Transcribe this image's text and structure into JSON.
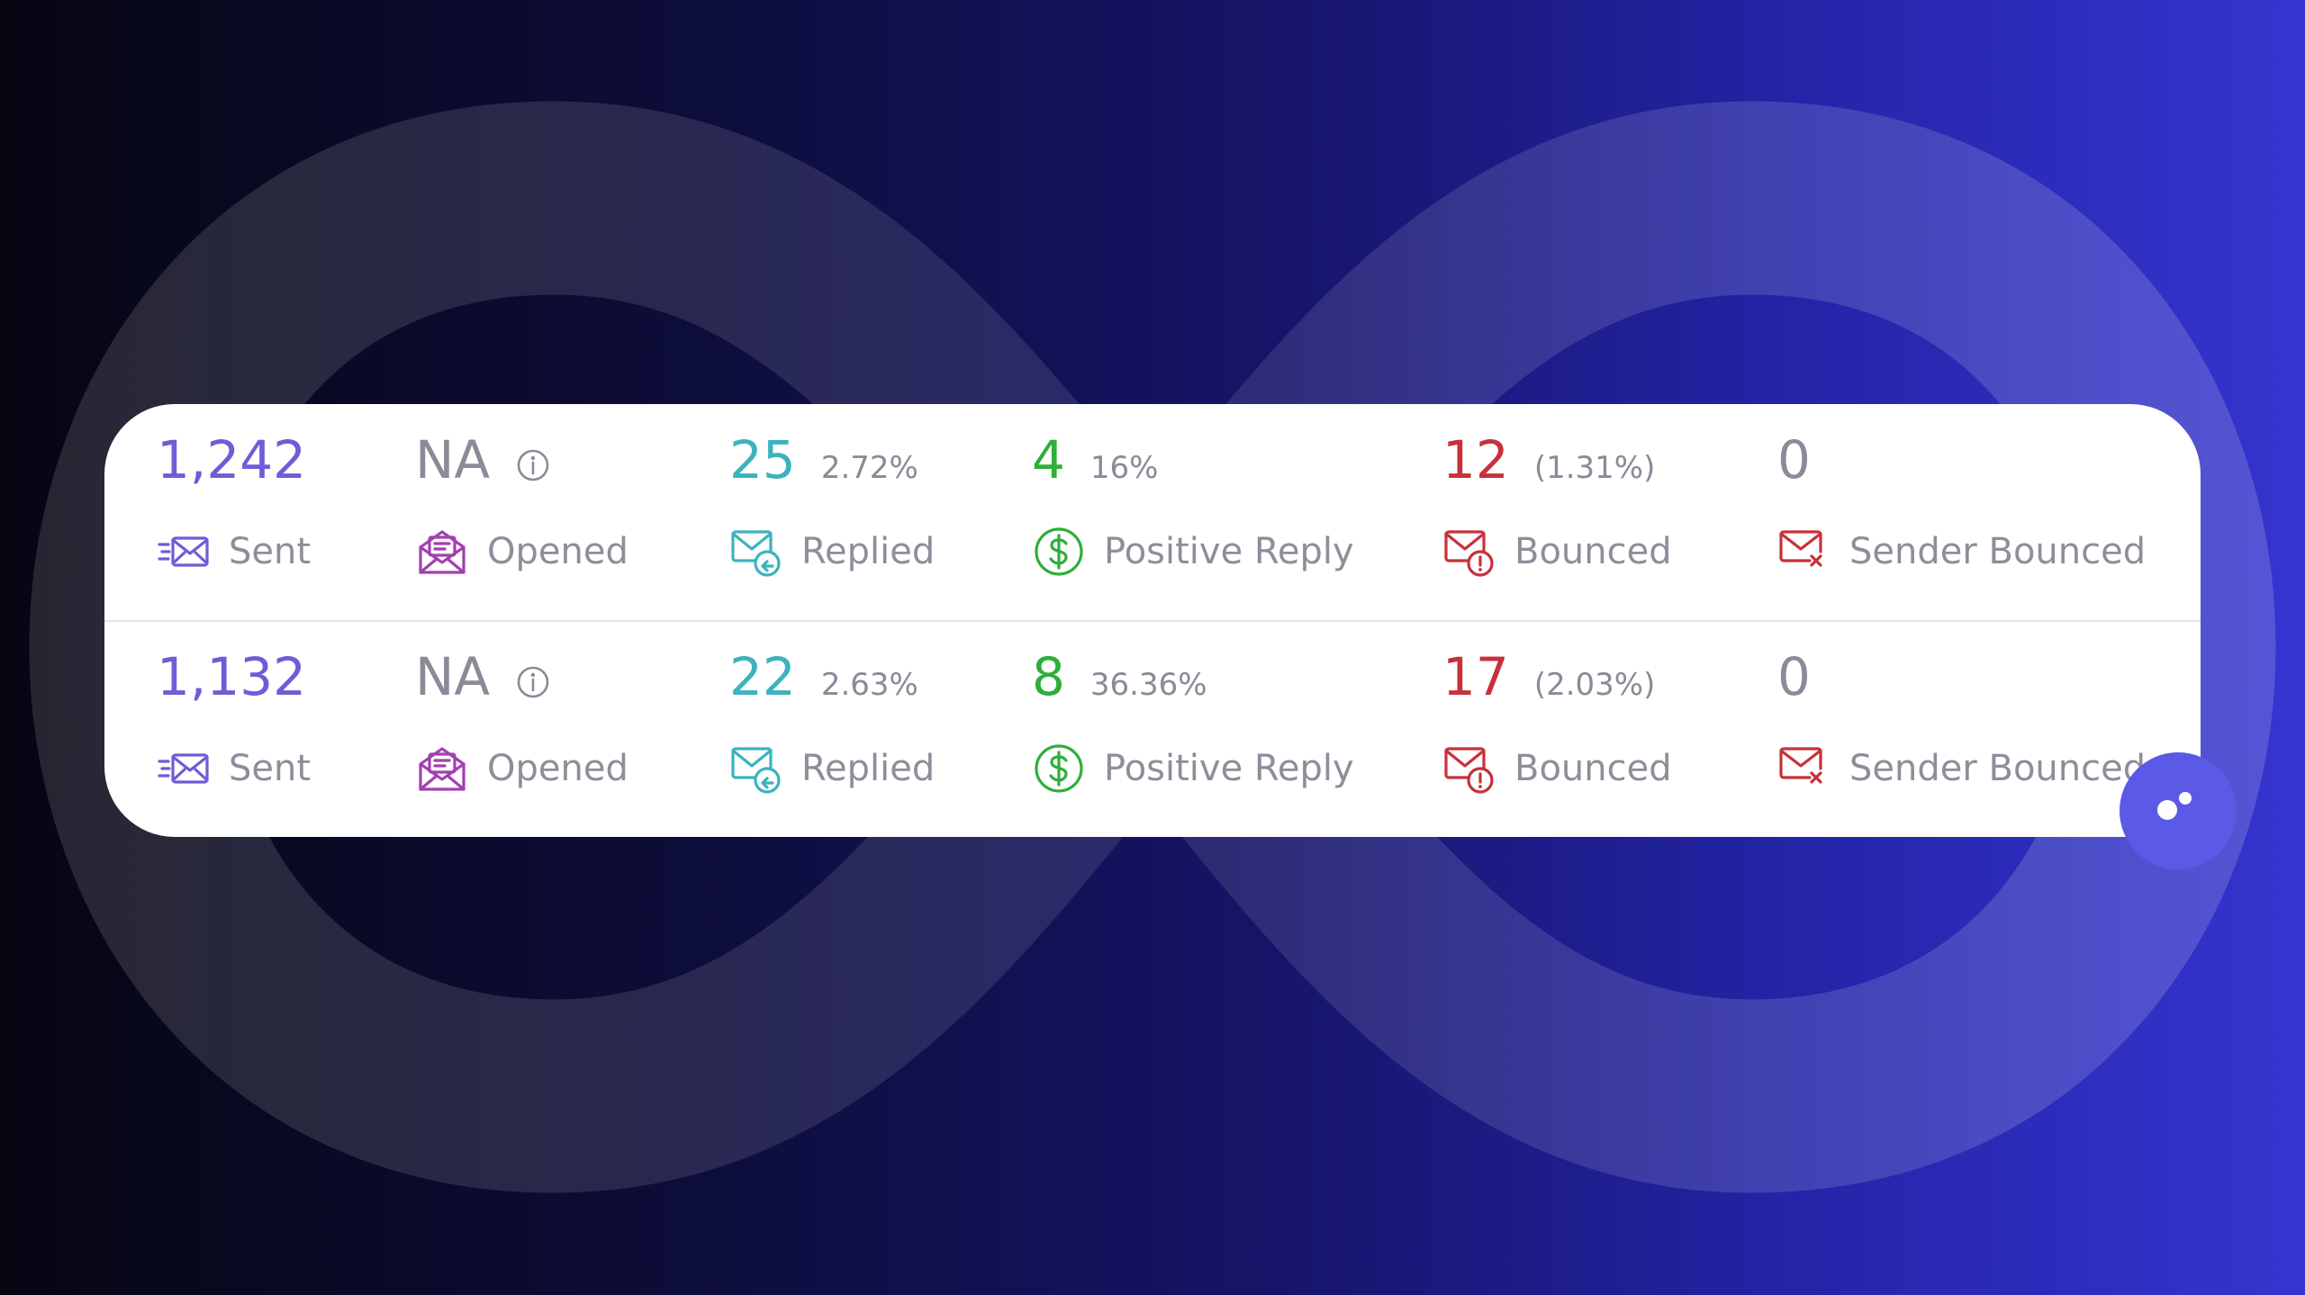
{
  "colors": {
    "sent": "#6f5cd6",
    "opened": "#a23fb0",
    "replied": "#3bb3be",
    "positive": "#2fae3a",
    "bounced": "#c8303a",
    "neutral": "#8a8a98"
  },
  "rows": [
    {
      "sent": {
        "value": "1,242",
        "label": "Sent",
        "icon": "send-mail-icon"
      },
      "opened": {
        "value": "NA",
        "label": "Opened",
        "icon": "open-envelope-icon",
        "info_icon": "info-icon"
      },
      "replied": {
        "value": "25",
        "pct": "2.72%",
        "label": "Replied",
        "icon": "reply-mail-icon"
      },
      "positive": {
        "value": "4",
        "pct": "16%",
        "label": "Positive Reply",
        "icon": "dollar-circle-icon"
      },
      "bounced": {
        "value": "12",
        "pct": "(1.31%)",
        "label": "Bounced",
        "icon": "mail-alert-icon"
      },
      "sender_bounced": {
        "value": "0",
        "label": "Sender Bounced",
        "icon": "mail-x-icon"
      }
    },
    {
      "sent": {
        "value": "1,132",
        "label": "Sent",
        "icon": "send-mail-icon"
      },
      "opened": {
        "value": "NA",
        "label": "Opened",
        "icon": "open-envelope-icon",
        "info_icon": "info-icon"
      },
      "replied": {
        "value": "22",
        "pct": "2.63%",
        "label": "Replied",
        "icon": "reply-mail-icon"
      },
      "positive": {
        "value": "8",
        "pct": "36.36%",
        "label": "Positive Reply",
        "icon": "dollar-circle-icon"
      },
      "bounced": {
        "value": "17",
        "pct": "(2.03%)",
        "label": "Bounced",
        "icon": "mail-alert-icon"
      },
      "sender_bounced": {
        "value": "0",
        "label": "Sender Bounced",
        "icon": "mail-x-icon"
      }
    }
  ],
  "chat_widget": {
    "icon": "chat-launcher-icon"
  }
}
